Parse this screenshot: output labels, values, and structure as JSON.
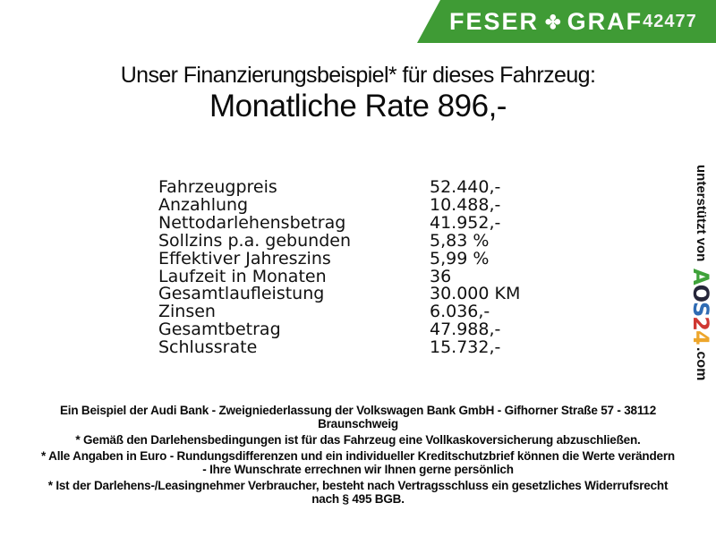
{
  "header": {
    "brand_part1": "FESER",
    "brand_part2": "GRAF",
    "clover_icon": "✤",
    "dealer_number": "42477",
    "colors": {
      "banner_green": "#3f9b35",
      "banner_text": "#ffffff"
    }
  },
  "title": {
    "line1": "Unser Finanzierungsbeispiel* für dieses Fahrzeug:",
    "line2": "Monatliche Rate 896,-"
  },
  "finance_table": {
    "rows": [
      {
        "label": "Fahrzeugpreis",
        "value": "52.440,-"
      },
      {
        "label": "Anzahlung",
        "value": "10.488,-"
      },
      {
        "label": "Nettodarlehensbetrag",
        "value": "41.952,-"
      },
      {
        "label": "Sollzins p.a. gebunden",
        "value": "5,83 %"
      },
      {
        "label": "Effektiver Jahreszins",
        "value": "5,99 %"
      },
      {
        "label": "Laufzeit in Monaten",
        "value": "36"
      },
      {
        "label": "Gesamtlaufleistung",
        "value": "30.000 KM"
      },
      {
        "label": "Zinsen",
        "value": "6.036,-"
      },
      {
        "label": "Gesamtbetrag",
        "value": "47.988,-"
      },
      {
        "label": "Schlussrate",
        "value": "15.732,-"
      }
    ]
  },
  "footer": {
    "paragraphs": [
      {
        "lines": [
          "Ein Beispiel der Audi Bank - Zweigniederlassung der Volkswagen Bank GmbH - Gifhorner Straße 57 - 38112",
          "Braunschweig"
        ]
      },
      {
        "lines": [
          "* Gemäß den Darlehensbedingungen ist für das Fahrzeug eine Vollkaskoversicherung abzuschließen."
        ]
      },
      {
        "lines": [
          "* Alle Angaben in Euro - Rundungsdifferenzen und ein individueller Kreditschutzbrief können die Werte verändern",
          "- Ihre Wunschrate errechnen wir Ihnen gerne persönlich"
        ]
      },
      {
        "lines": [
          "* Ist der Darlehens-/Leasingnehmer Verbraucher, besteht nach Vertragsschluss ein gesetzliches Widerrufsrecht",
          "nach § 495 BGB."
        ]
      }
    ]
  },
  "sidebar": {
    "prefix": "unterstützt von",
    "logo_letters": [
      {
        "char": "A",
        "color": "#3fa23a"
      },
      {
        "char": "O",
        "color": "#26263a"
      },
      {
        "char": "S",
        "color": "#2f6cb4"
      },
      {
        "char": "2",
        "color": "#cf3732"
      },
      {
        "char": "4",
        "color": "#eda62b"
      }
    ],
    "suffix": ".com"
  }
}
